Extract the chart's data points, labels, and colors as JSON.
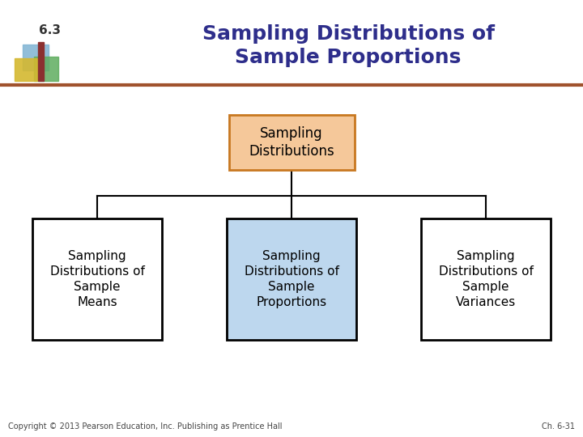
{
  "title_line1": "Sampling Distributions of",
  "title_line2": "Sample Proportions",
  "title_color": "#2E2E8B",
  "section_number": "6.3",
  "background_color": "#FFFFFF",
  "header_line_color": "#A0522D",
  "root_box_text": "Sampling\nDistributions",
  "root_box_facecolor": "#F5C89A",
  "root_box_edgecolor": "#C87820",
  "child_boxes": [
    {
      "text": "Sampling\nDistributions of\nSample\nMeans",
      "facecolor": "#FFFFFF",
      "edgecolor": "#000000"
    },
    {
      "text": "Sampling\nDistributions of\nSample\nProportions",
      "facecolor": "#BDD7EE",
      "edgecolor": "#000000"
    },
    {
      "text": "Sampling\nDistributions of\nSample\nVariances",
      "facecolor": "#FFFFFF",
      "edgecolor": "#000000"
    }
  ],
  "footer_left": "Copyright © 2013 Pearson Education, Inc. Publishing as Prentice Hall",
  "footer_right": "Ch. 6-31",
  "connector_color": "#000000",
  "icon_blue": "#7FB3D3",
  "icon_green": "#5FAD5F",
  "icon_yellow": "#D4B830",
  "icon_red": "#8B3030"
}
